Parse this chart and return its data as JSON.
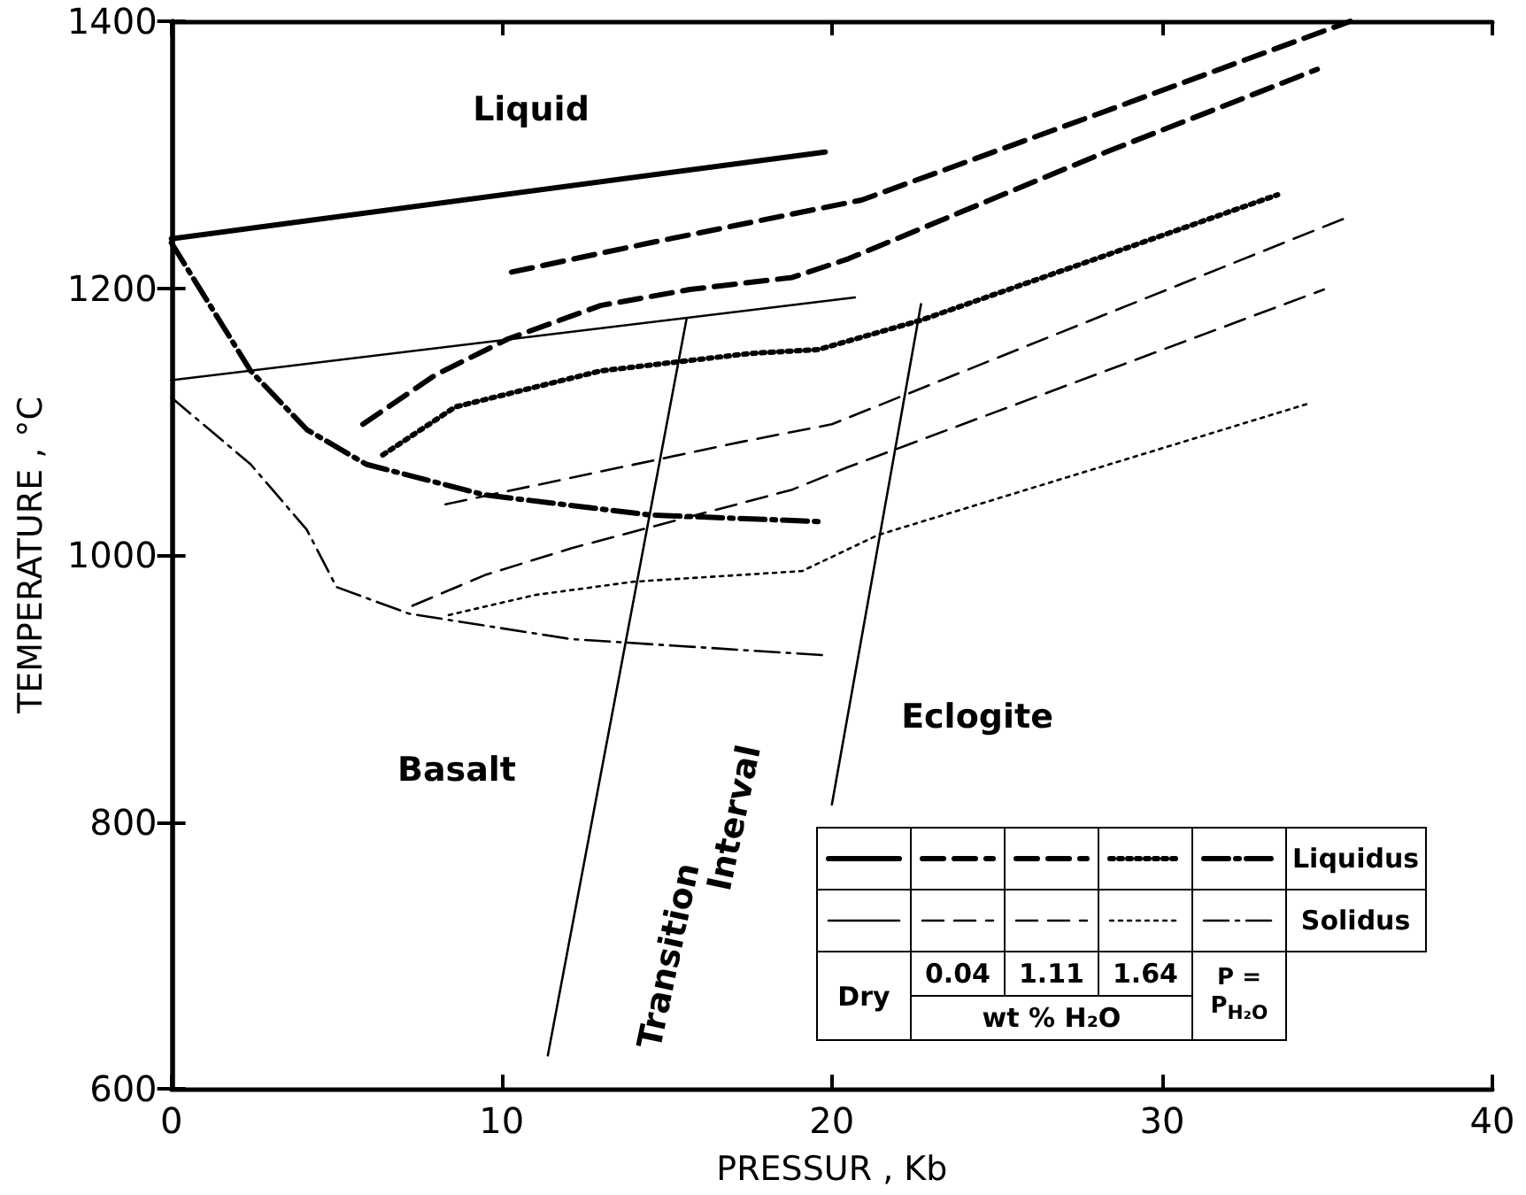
{
  "chart_data": {
    "type": "line",
    "xlabel": "PRESSUR , Kb",
    "ylabel": "TEMPERATURE , °C",
    "xlim": [
      0,
      40
    ],
    "xticks": [
      0,
      10,
      20,
      30,
      40
    ],
    "ylim": [
      600,
      1400
    ],
    "yticks": [
      600,
      800,
      1000,
      1200,
      1400
    ],
    "grid": false,
    "marker": "none",
    "series": [
      {
        "color": "#000000",
        "line_style": "solid",
        "x": [
          0,
          19.8
        ],
        "values": [
          1237,
          1302
        ]
      },
      {
        "color": "#000000",
        "line_style": "dashed",
        "x": [
          10.3,
          14.5,
          20.9,
          28.0,
          35.7
        ],
        "values": [
          1212,
          1234,
          1266,
          1330,
          1400
        ]
      },
      {
        "color": "#000000",
        "line_style": "dashed",
        "x": [
          5.8,
          8.0,
          10.2,
          13.0,
          15.7,
          18.8,
          20.5,
          28.0,
          34.7
        ],
        "values": [
          1098,
          1135,
          1162,
          1187,
          1199,
          1208,
          1222,
          1299,
          1364
        ]
      },
      {
        "color": "#000000",
        "line_style": "dotted",
        "x": [
          6.4,
          8.6,
          13.0,
          17.5,
          19.6,
          22.7,
          28.0,
          33.5
        ],
        "values": [
          1075,
          1111,
          1138,
          1151,
          1154,
          1176,
          1222,
          1270
        ]
      },
      {
        "color": "#000000",
        "line_style": "dashdot",
        "x": [
          0,
          2.4,
          4.1,
          5.9,
          9.5,
          14.5,
          19.7
        ],
        "values": [
          1234,
          1138,
          1094,
          1068,
          1045,
          1030,
          1025
        ]
      },
      {
        "color": "#000000",
        "line_style": "solid",
        "x": [
          0,
          20.7
        ],
        "values": [
          1131,
          1193
        ]
      },
      {
        "color": "#000000",
        "line_style": "dashed",
        "x": [
          8.3,
          17.3,
          20.0,
          35.5
        ],
        "values": [
          1038,
          1085,
          1098,
          1252
        ]
      },
      {
        "color": "#000000",
        "line_style": "dashed",
        "x": [
          7.3,
          9.5,
          12.1,
          18.8,
          20.5,
          34.9
        ],
        "values": [
          962,
          985,
          1005,
          1049,
          1066,
          1199
        ]
      },
      {
        "color": "#000000",
        "line_style": "dotted",
        "x": [
          8.4,
          11.0,
          14.0,
          19.1,
          21.4,
          34.5
        ],
        "values": [
          955,
          970,
          980,
          988,
          1015,
          1114
        ]
      },
      {
        "color": "#000000",
        "line_style": "dashdot",
        "x": [
          0,
          2.4,
          4.1,
          5.0,
          7.2,
          12.1,
          19.7
        ],
        "values": [
          1118,
          1068,
          1019,
          976,
          956,
          937,
          925
        ]
      },
      {
        "color": "#000000",
        "line_style": "solid",
        "x": [
          11.4,
          15.6
        ],
        "values": [
          625,
          1177
        ]
      },
      {
        "color": "#000000",
        "line_style": "solid",
        "x": [
          20.0,
          22.7
        ],
        "values": [
          813,
          1188
        ]
      }
    ],
    "annotations": [
      "Liquid",
      "Basalt",
      "Eclogite",
      "Transition",
      "Interval",
      "Liquidus",
      "Solidus",
      "Dry",
      "0.04",
      "1.11",
      "1.64",
      "wt % H₂O",
      "P = P$_{H₂O}$"
    ]
  }
}
